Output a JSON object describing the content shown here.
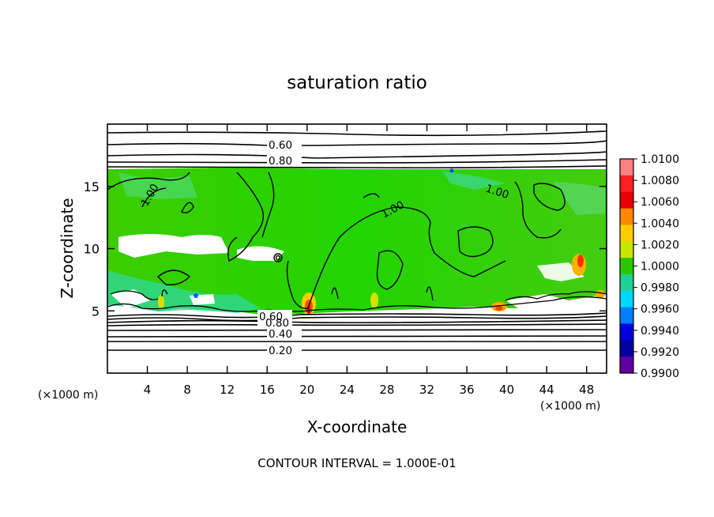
{
  "chart_data": {
    "type": "heatmap",
    "title": "saturation ratio",
    "xlabel": "X-coordinate",
    "ylabel": "Z-coordinate",
    "x_unit_left": "(×1000 m)",
    "x_unit_right": "(×1000 m)",
    "footer": "CONTOUR INTERVAL = 1.000E-01",
    "xlim": [
      0,
      50
    ],
    "ylim": [
      0,
      20
    ],
    "xticks": [
      4,
      8,
      12,
      16,
      20,
      24,
      28,
      32,
      36,
      40,
      44,
      48
    ],
    "yticks": [
      5,
      10,
      15
    ],
    "contour_labels": [
      "0.60",
      "0.80",
      "1.00",
      "1.00",
      "1.00",
      "0.80",
      "0.60",
      "0.40",
      "0.20"
    ],
    "colorbar": {
      "levels": [
        "1.0100",
        "1.0080",
        "1.0060",
        "1.0040",
        "1.0020",
        "1.0000",
        "0.9980",
        "0.9960",
        "0.9940",
        "0.9920",
        "0.9900"
      ],
      "colors": [
        "#ff8080",
        "#ff2020",
        "#e80000",
        "#ff8800",
        "#ffcc00",
        "#c8e600",
        "#28c800",
        "#20d090",
        "#00d8ff",
        "#0080ff",
        "#0000e0",
        "#0000a0",
        "#6000a0"
      ]
    }
  }
}
